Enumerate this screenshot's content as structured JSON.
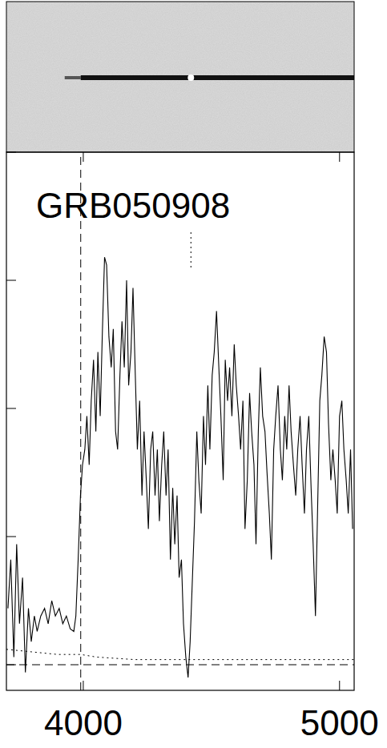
{
  "chart_data": {
    "type": "line",
    "title": "GRB050908",
    "xlim": [
      3700,
      5057
    ],
    "xticks": [
      4000,
      5000
    ],
    "ylim": [
      -1,
      20
    ],
    "yticks": [
      0,
      5,
      10,
      15,
      20
    ],
    "tick_labels": "x",
    "series": [
      {
        "color": "#000000",
        "line_style": "solid",
        "x": [
          3706,
          3717,
          3729,
          3740,
          3751,
          3763,
          3774,
          3786,
          3797,
          3809,
          3820,
          3834,
          3849,
          3863,
          3877,
          3891,
          3906,
          3920,
          3934,
          3949,
          3963,
          3971,
          3980,
          3989,
          3997,
          4006,
          4014,
          4023,
          4031,
          4040,
          4049,
          4057,
          4066,
          4074,
          4083,
          4091,
          4100,
          4109,
          4117,
          4126,
          4134,
          4143,
          4151,
          4160,
          4169,
          4177,
          4186,
          4194,
          4203,
          4211,
          4220,
          4229,
          4237,
          4246,
          4254,
          4263,
          4271,
          4280,
          4289,
          4297,
          4306,
          4314,
          4323,
          4331,
          4340,
          4349,
          4357,
          4366,
          4374,
          4383,
          4391,
          4400,
          4409,
          4417,
          4426,
          4434,
          4443,
          4451,
          4460,
          4469,
          4477,
          4486,
          4494,
          4503,
          4511,
          4520,
          4529,
          4537,
          4546,
          4554,
          4563,
          4571,
          4580,
          4589,
          4597,
          4606,
          4614,
          4623,
          4631,
          4640,
          4649,
          4657,
          4666,
          4674,
          4683,
          4691,
          4700,
          4709,
          4717,
          4726,
          4734,
          4743,
          4751,
          4760,
          4769,
          4777,
          4786,
          4794,
          4803,
          4811,
          4820,
          4829,
          4837,
          4846,
          4854,
          4863,
          4871,
          4880,
          4889,
          4897,
          4906,
          4914,
          4923,
          4931,
          4940,
          4949,
          4957,
          4966,
          4974,
          4983,
          4991,
          5000,
          5009,
          5017,
          5026,
          5034,
          5043,
          5051
        ],
        "values": [
          2.2,
          4.1,
          0.3,
          4.7,
          1.6,
          3.4,
          -0.3,
          2.2,
          0.9,
          1.9,
          1.3,
          1.9,
          2.2,
          1.6,
          2.5,
          1.9,
          2.2,
          1.6,
          1.9,
          1.4,
          1.3,
          1.9,
          4.1,
          6.6,
          7.8,
          8.4,
          9.7,
          7.8,
          10.3,
          11.9,
          9.1,
          12.2,
          9.7,
          12.8,
          15.9,
          15.6,
          12.8,
          11.6,
          13.1,
          9.1,
          8.4,
          11.3,
          13.4,
          11.6,
          15.0,
          10.9,
          12.2,
          14.7,
          11.3,
          8.4,
          10.3,
          6.6,
          9.1,
          7.2,
          5.3,
          8.4,
          9.1,
          6.6,
          8.4,
          5.6,
          7.8,
          9.1,
          6.6,
          8.4,
          4.1,
          6.9,
          4.7,
          6.6,
          3.4,
          4.1,
          1.6,
          0.3,
          -0.5,
          0.9,
          3.4,
          5.6,
          9.1,
          7.2,
          5.9,
          9.7,
          7.8,
          10.9,
          8.4,
          11.3,
          12.2,
          13.8,
          11.6,
          9.7,
          7.2,
          11.9,
          10.3,
          11.6,
          9.7,
          12.5,
          10.9,
          9.7,
          8.4,
          10.3,
          5.3,
          7.2,
          10.6,
          9.1,
          7.8,
          4.7,
          9.1,
          11.6,
          9.7,
          9.1,
          7.5,
          5.9,
          4.1,
          8.4,
          9.7,
          10.9,
          8.4,
          7.2,
          9.7,
          8.4,
          10.9,
          9.1,
          7.8,
          6.6,
          8.4,
          9.7,
          7.8,
          5.9,
          8.4,
          9.7,
          6.9,
          4.7,
          1.9,
          5.9,
          10.3,
          11.3,
          12.8,
          12.2,
          9.4,
          7.2,
          8.4,
          7.2,
          5.9,
          9.7,
          10.3,
          8.4,
          7.2,
          5.9,
          8.4,
          5.3
        ]
      },
      {
        "color": "#000000",
        "line_style": "dotted",
        "x": [
          3700,
          3800,
          3900,
          3990,
          4050,
          4200,
          4400,
          4600,
          4800,
          5057
        ],
        "values": [
          0.6,
          0.5,
          0.4,
          0.4,
          0.3,
          0.2,
          0.2,
          0.2,
          0.2,
          0.2
        ]
      }
    ],
    "vlines": [
      {
        "x": 3990,
        "line_style": "dashed"
      },
      {
        "x": 4420,
        "y": [
          15.5,
          17.0
        ],
        "line_style": "dotted"
      }
    ],
    "hlines": [
      {
        "y": 0,
        "line_style": "dashed"
      }
    ]
  }
}
